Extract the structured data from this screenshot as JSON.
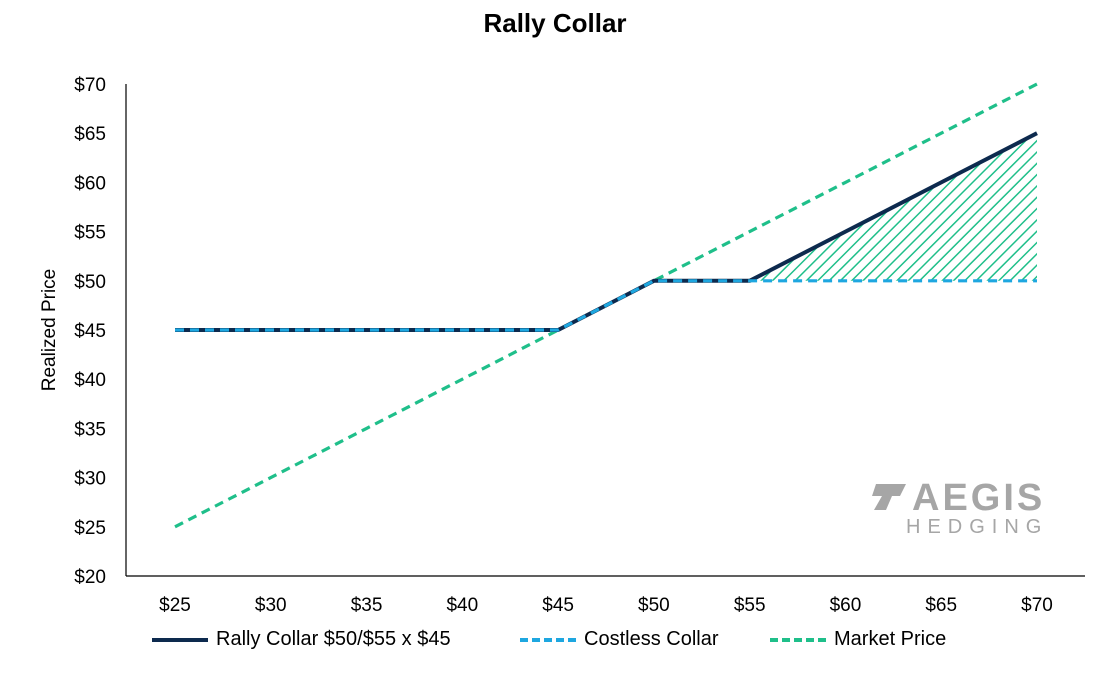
{
  "chart_data": {
    "type": "line",
    "title": "Rally Collar",
    "xlabel": "",
    "ylabel": "Realized Price",
    "x": [
      25,
      30,
      35,
      40,
      45,
      50,
      55,
      60,
      65,
      70
    ],
    "x_tick_labels": [
      "$25",
      "$30",
      "$35",
      "$40",
      "$45",
      "$50",
      "$55",
      "$60",
      "$65",
      "$70"
    ],
    "y_tick_labels": [
      "$20",
      "$25",
      "$30",
      "$35",
      "$40",
      "$45",
      "$50",
      "$55",
      "$60",
      "$65",
      "$70"
    ],
    "ylim": [
      20,
      70
    ],
    "grid": false,
    "legend_position": "bottom",
    "series": [
      {
        "name": "Rally Collar $50/$55 x $45",
        "style": "solid",
        "color": "#0d2a4e",
        "values": [
          45,
          45,
          45,
          45,
          45,
          50,
          50,
          55,
          60,
          65
        ]
      },
      {
        "name": "Costless Collar",
        "style": "dashed",
        "color": "#1ea7e0",
        "values": [
          45,
          45,
          45,
          45,
          45,
          50,
          50,
          50,
          50,
          50
        ]
      },
      {
        "name": "Market Price",
        "style": "dashed",
        "color": "#1fbf8a",
        "values": [
          25,
          30,
          35,
          40,
          45,
          50,
          55,
          60,
          65,
          70
        ]
      }
    ],
    "shaded_region": {
      "between": [
        "Rally Collar $50/$55 x $45",
        "Costless Collar"
      ],
      "x_range": [
        55,
        70
      ],
      "pattern": "diagonal-hatch",
      "color": "#1fbf8a"
    }
  },
  "logo": {
    "line1": "AEGIS",
    "line2": "HEDGING",
    "color": "#a6a6a6"
  }
}
